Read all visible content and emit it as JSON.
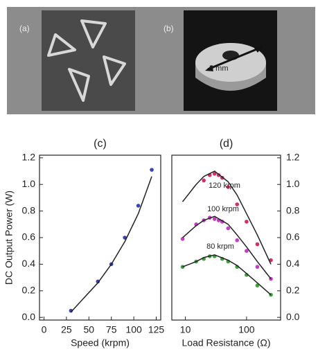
{
  "panels": [
    {
      "label": "(a)"
    },
    {
      "label": "(b)",
      "annotation": "5 mm"
    }
  ],
  "chart_data": [
    {
      "type": "scatter",
      "title": "(c)",
      "x_label": "Speed (krpm)",
      "y_label": "DC Output Power (W)",
      "xlim": [
        -5,
        130
      ],
      "xticks": [
        0,
        25,
        50,
        75,
        100,
        125
      ],
      "ylim": [
        -0.02,
        1.22
      ],
      "yticks": [
        {
          "value": 0,
          "label": "0.0"
        },
        0.2,
        0.4,
        0.6,
        0.8,
        {
          "value": 1,
          "label": "1.0"
        },
        1.2
      ],
      "series": [
        {
          "type": "scatter",
          "color": "#3a44b0",
          "x": [
            30,
            60,
            75,
            90,
            105,
            120
          ],
          "values": [
            0.05,
            0.27,
            0.4,
            0.6,
            0.84,
            1.11
          ]
        },
        {
          "type": "line",
          "color": "#222222",
          "x": [
            30,
            45,
            60,
            75,
            90,
            105,
            120
          ],
          "values": [
            0.04,
            0.15,
            0.26,
            0.4,
            0.57,
            0.78,
            1.06
          ]
        }
      ]
    },
    {
      "type": "scatter",
      "title": "(d)",
      "x_label": "Load Resistance (Ω)",
      "xscale": "log",
      "xlim": [
        6,
        360
      ],
      "xticks": [
        10,
        100
      ],
      "ylim": [
        -0.02,
        1.22
      ],
      "yticks": [
        {
          "value": 0,
          "label": "0.0"
        },
        0.2,
        0.4,
        0.6,
        0.8,
        {
          "value": 1,
          "label": "1.0"
        },
        1.2
      ],
      "annotations": [
        "120 krpm",
        "100 krpm",
        "80 krpm"
      ],
      "series": [
        {
          "type": "scatter",
          "color": "#d0306a",
          "x": [
            20,
            25,
            30,
            35,
            40,
            50,
            70,
            100,
            150,
            250
          ],
          "values": [
            1.03,
            1.07,
            1.08,
            1.07,
            1.05,
            0.98,
            0.85,
            0.72,
            0.55,
            0.43
          ]
        },
        {
          "type": "scatter",
          "color": "#c040c0",
          "x": [
            9,
            15,
            20,
            25,
            30,
            35,
            40,
            50,
            70,
            100,
            150,
            250
          ],
          "values": [
            0.59,
            0.7,
            0.73,
            0.75,
            0.74,
            0.73,
            0.72,
            0.67,
            0.58,
            0.5,
            0.38,
            0.29
          ]
        },
        {
          "type": "scatter",
          "color": "#40a040",
          "x": [
            9,
            15,
            20,
            25,
            30,
            40,
            50,
            70,
            100,
            150,
            250
          ],
          "values": [
            0.38,
            0.42,
            0.44,
            0.46,
            0.46,
            0.44,
            0.42,
            0.38,
            0.32,
            0.24,
            0.17
          ]
        },
        {
          "type": "line",
          "color": "#222222",
          "x": [
            9,
            15,
            20,
            30,
            50,
            70,
            100,
            150,
            250
          ],
          "values": [
            0.87,
            1.0,
            1.06,
            1.1,
            1.02,
            0.92,
            0.78,
            0.62,
            0.4
          ]
        },
        {
          "type": "line",
          "color": "#222222",
          "x": [
            9,
            15,
            20,
            30,
            50,
            70,
            100,
            150,
            250
          ],
          "values": [
            0.6,
            0.69,
            0.73,
            0.76,
            0.7,
            0.62,
            0.53,
            0.42,
            0.29
          ]
        },
        {
          "type": "line",
          "color": "#222222",
          "x": [
            9,
            15,
            20,
            30,
            50,
            70,
            100,
            150,
            250
          ],
          "values": [
            0.38,
            0.42,
            0.45,
            0.47,
            0.43,
            0.39,
            0.33,
            0.26,
            0.17
          ]
        }
      ]
    }
  ]
}
